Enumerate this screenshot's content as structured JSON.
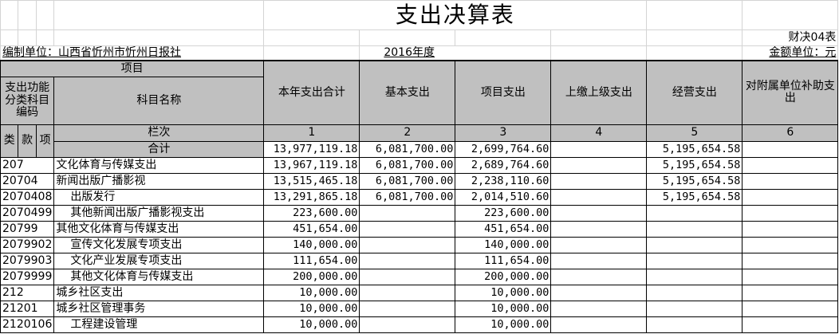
{
  "title": "支出决算表",
  "form_code": "财决04表",
  "unit_label": "编制单位：山西省忻州市忻州日报社",
  "year": "2016年度",
  "amount_unit": "金额单位：元",
  "header": {
    "item": "项目",
    "code_group": "支出功能分类科目编码",
    "name": "科目名称",
    "columns": [
      "本年支出合计",
      "基本支出",
      "项目支出",
      "上缴上级支出",
      "经营支出",
      "对附属单位补助支出"
    ],
    "row_index_label": "栏次",
    "col_numbers": [
      "1",
      "2",
      "3",
      "4",
      "5",
      "6"
    ],
    "lei": "类",
    "kuan": "款",
    "xiang": "项",
    "total_label": "合计"
  },
  "total": [
    "13,977,119.18",
    "6,081,700.00",
    "2,699,764.60",
    "",
    "5,195,654.58",
    ""
  ],
  "rows": [
    {
      "code": "207",
      "name": "文化体育与传媒支出",
      "indent": false,
      "v": [
        "13,967,119.18",
        "6,081,700.00",
        "2,689,764.60",
        "",
        "5,195,654.58",
        ""
      ]
    },
    {
      "code": "20704",
      "name": "新闻出版广播影视",
      "indent": false,
      "v": [
        "13,515,465.18",
        "6,081,700.00",
        "2,238,110.60",
        "",
        "5,195,654.58",
        ""
      ]
    },
    {
      "code": "2070408",
      "name": "出版发行",
      "indent": true,
      "v": [
        "13,291,865.18",
        "6,081,700.00",
        "2,014,510.60",
        "",
        "5,195,654.58",
        ""
      ]
    },
    {
      "code": "2070499",
      "name": "其他新闻出版广播影视支出",
      "indent": true,
      "v": [
        "223,600.00",
        "",
        "223,600.00",
        "",
        "",
        ""
      ]
    },
    {
      "code": "20799",
      "name": "其他文化体育与传媒支出",
      "indent": false,
      "v": [
        "451,654.00",
        "",
        "451,654.00",
        "",
        "",
        ""
      ]
    },
    {
      "code": "2079902",
      "name": "宣传文化发展专项支出",
      "indent": true,
      "v": [
        "140,000.00",
        "",
        "140,000.00",
        "",
        "",
        ""
      ]
    },
    {
      "code": "2079903",
      "name": "文化产业发展专项支出",
      "indent": true,
      "v": [
        "111,654.00",
        "",
        "111,654.00",
        "",
        "",
        ""
      ]
    },
    {
      "code": "2079999",
      "name": "其他文化体育与传媒支出",
      "indent": true,
      "v": [
        "200,000.00",
        "",
        "200,000.00",
        "",
        "",
        ""
      ]
    },
    {
      "code": "212",
      "name": "城乡社区支出",
      "indent": false,
      "v": [
        "10,000.00",
        "",
        "10,000.00",
        "",
        "",
        ""
      ]
    },
    {
      "code": "21201",
      "name": "城乡社区管理事务",
      "indent": false,
      "v": [
        "10,000.00",
        "",
        "10,000.00",
        "",
        "",
        ""
      ]
    },
    {
      "code": "2120106",
      "name": "工程建设管理",
      "indent": true,
      "v": [
        "10,000.00",
        "",
        "10,000.00",
        "",
        "",
        ""
      ]
    }
  ]
}
